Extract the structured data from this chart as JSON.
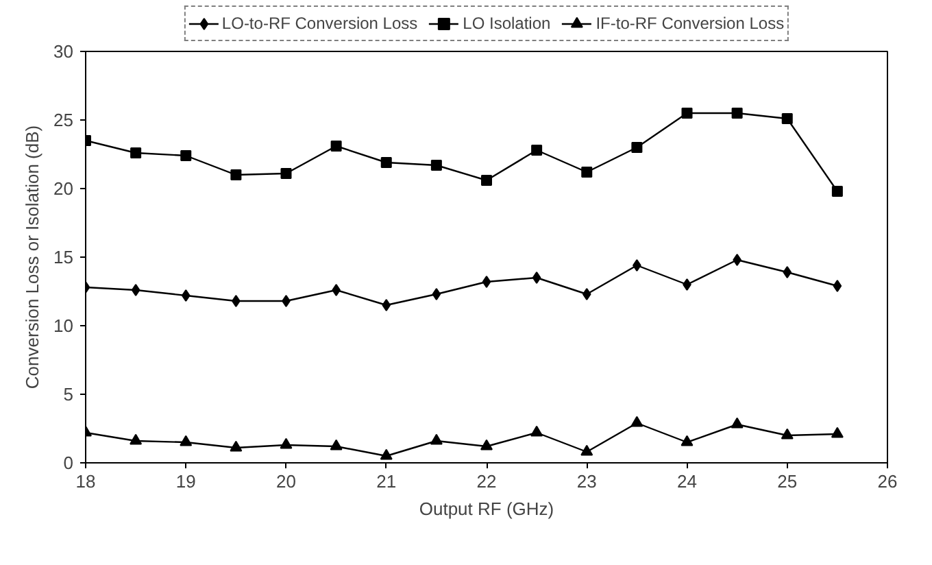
{
  "chart_data": {
    "type": "line",
    "xlabel": "Output RF (GHz)",
    "ylabel": "Conversion Loss or Isolation (dB)",
    "x": [
      18,
      18.5,
      19,
      19.5,
      20,
      20.5,
      21,
      21.5,
      22,
      22.5,
      23,
      23.5,
      24,
      24.5,
      25,
      25.5
    ],
    "series": [
      {
        "name": "LO-to-RF Conversion Loss",
        "color": "#000000",
        "marker": "diamond",
        "values": [
          12.8,
          12.6,
          12.2,
          11.8,
          11.8,
          12.6,
          11.5,
          12.3,
          13.2,
          13.5,
          12.3,
          14.4,
          13.0,
          14.8,
          13.9,
          12.9
        ]
      },
      {
        "name": "LO Isolation",
        "color": "#000000",
        "marker": "square",
        "values": [
          23.5,
          22.6,
          22.4,
          21.0,
          21.1,
          23.1,
          21.9,
          21.7,
          20.6,
          22.8,
          21.2,
          23.0,
          25.5,
          25.5,
          25.1,
          19.8
        ]
      },
      {
        "name": "IF-to-RF Conversion Loss",
        "color": "#000000",
        "marker": "triangle",
        "values": [
          2.2,
          1.6,
          1.5,
          1.1,
          1.3,
          1.2,
          0.5,
          1.6,
          1.2,
          2.2,
          0.8,
          2.9,
          1.5,
          2.8,
          2.0,
          2.1
        ]
      }
    ],
    "xlim": [
      18,
      26
    ],
    "xticks": [
      18,
      19,
      20,
      21,
      22,
      23,
      24,
      25,
      26
    ],
    "ylim": [
      0,
      30
    ],
    "yticks": [
      0,
      5,
      10,
      15,
      20,
      25,
      30
    ],
    "grid": false,
    "legend": "top",
    "line_style": "solid"
  }
}
